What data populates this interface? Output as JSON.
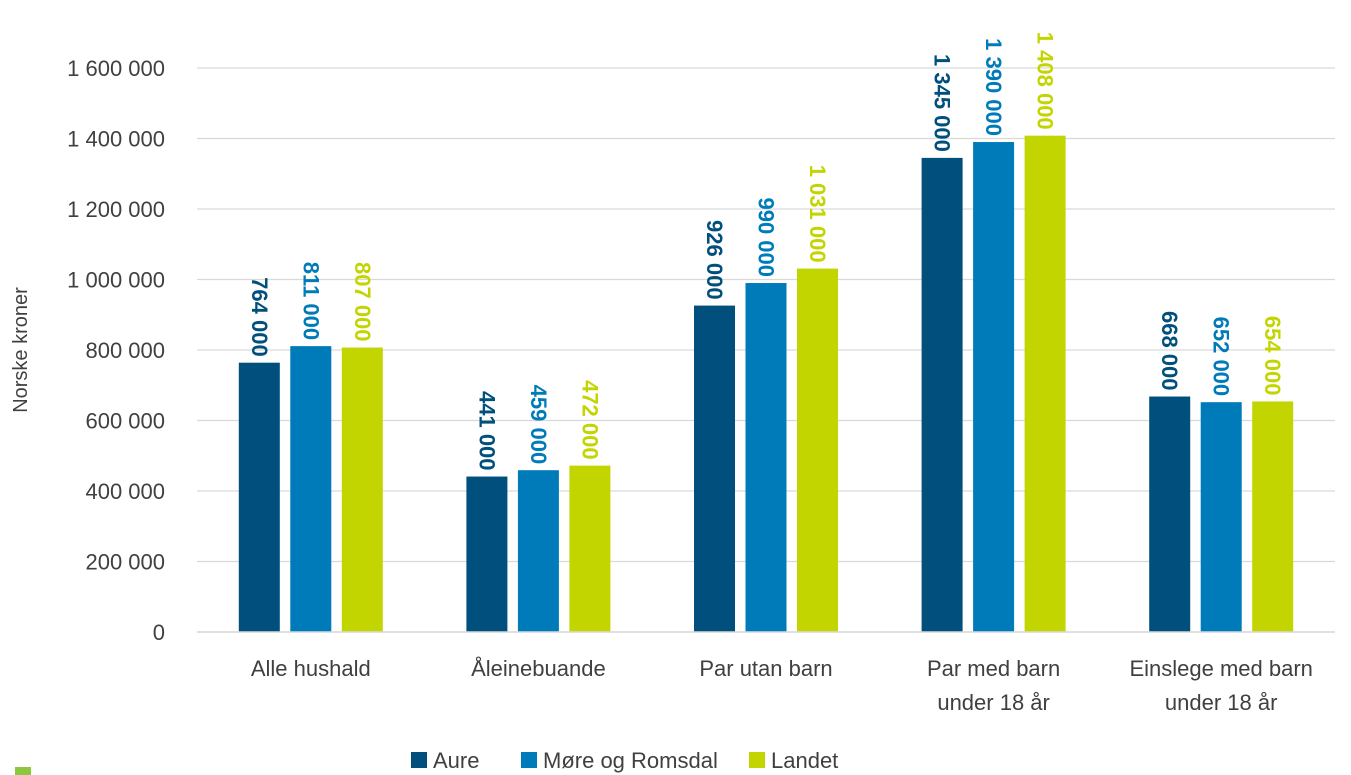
{
  "chart_data": {
    "type": "bar",
    "title": "",
    "xlabel": "",
    "ylabel": "Norske kroner",
    "ylim": [
      0,
      1600000
    ],
    "yticks": [
      0,
      200000,
      400000,
      600000,
      800000,
      1000000,
      1200000,
      1400000,
      1600000
    ],
    "ytick_labels": [
      "0",
      "200 000",
      "400 000",
      "600 000",
      "800 000",
      "1 000 000",
      "1 200 000",
      "1 400 000",
      "1 600 000"
    ],
    "grid": "horizontal",
    "legend_position": "bottom",
    "categories": [
      [
        "Alle hushald"
      ],
      [
        "Åleinebuande"
      ],
      [
        "Par utan barn"
      ],
      [
        "Par med barn",
        "under 18 år"
      ],
      [
        "Einslege med barn",
        "under 18 år"
      ]
    ],
    "series": [
      {
        "name": "Aure",
        "color": "#004f7c",
        "values": [
          764000,
          441000,
          926000,
          1345000,
          668000
        ],
        "labels": [
          "764 000",
          "441 000",
          "926 000",
          "1 345 000",
          "668 000"
        ]
      },
      {
        "name": "Møre og Romsdal",
        "color": "#007bba",
        "values": [
          811000,
          459000,
          990000,
          1390000,
          652000
        ],
        "labels": [
          "811 000",
          "459 000",
          "990 000",
          "1 390 000",
          "652 000"
        ]
      },
      {
        "name": "Landet",
        "color": "#c3d500",
        "values": [
          807000,
          472000,
          1031000,
          1408000,
          654000
        ],
        "labels": [
          "807 000",
          "472 000",
          "1 031 000",
          "1 408 000",
          "654 000"
        ]
      }
    ]
  }
}
